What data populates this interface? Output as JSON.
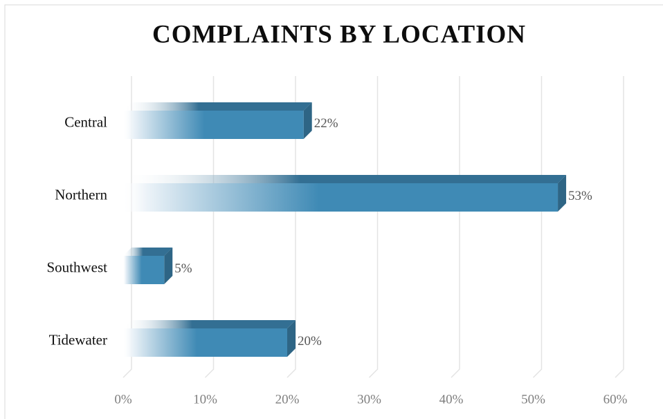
{
  "chart_data": {
    "type": "bar",
    "orientation": "horizontal",
    "title": "COMPLAINTS BY LOCATION",
    "categories": [
      "Central",
      "Northern",
      "Southwest",
      "Tidewater"
    ],
    "values": [
      22,
      53,
      5,
      20
    ],
    "value_labels": [
      "22%",
      "53%",
      "5%",
      "20%"
    ],
    "color": "#3f8ab5",
    "xlim": [
      0,
      60
    ],
    "xticks": [
      {
        "value": 0,
        "label": "0%"
      },
      {
        "value": 10,
        "label": "10%"
      },
      {
        "value": 20,
        "label": "20%"
      },
      {
        "value": 30,
        "label": "30%"
      },
      {
        "value": 40,
        "label": "40%"
      },
      {
        "value": 50,
        "label": "50%"
      },
      {
        "value": 60,
        "label": "60%"
      }
    ],
    "grid": true
  }
}
